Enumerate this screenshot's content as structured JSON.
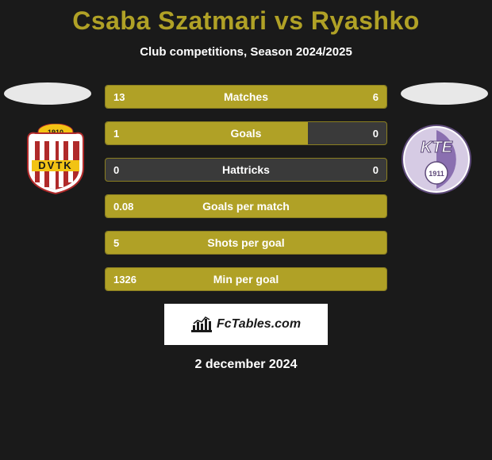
{
  "title": "Csaba Szatmari vs Ryashko",
  "subtitle": "Club competitions, Season 2024/2025",
  "date": "2 december 2024",
  "footer_brand": "FcTables.com",
  "colors": {
    "accent": "#b0a126",
    "background": "#1a1a1a",
    "bar_empty": "#3a3a3a",
    "text": "#ffffff",
    "footer_bg": "#ffffff"
  },
  "crest_left": {
    "name": "DVTK",
    "year": "1910",
    "primary": "#b02a2a",
    "secondary": "#f2c314",
    "white": "#ffffff"
  },
  "crest_right": {
    "name": "KTE",
    "year": "1911",
    "primary": "#8a6fb0",
    "secondary": "#ffffff",
    "outline": "#5e4a7a"
  },
  "stats": [
    {
      "label": "Matches",
      "left_val": "13",
      "right_val": "6",
      "left_pct": 66,
      "right_pct": 34
    },
    {
      "label": "Goals",
      "left_val": "1",
      "right_val": "0",
      "left_pct": 72,
      "right_pct": 0
    },
    {
      "label": "Hattricks",
      "left_val": "0",
      "right_val": "0",
      "left_pct": 0,
      "right_pct": 0
    },
    {
      "label": "Goals per match",
      "left_val": "0.08",
      "right_val": "",
      "left_pct": 100,
      "right_pct": 0
    },
    {
      "label": "Shots per goal",
      "left_val": "5",
      "right_val": "",
      "left_pct": 100,
      "right_pct": 0
    },
    {
      "label": "Min per goal",
      "left_val": "1326",
      "right_val": "",
      "left_pct": 100,
      "right_pct": 0
    }
  ]
}
